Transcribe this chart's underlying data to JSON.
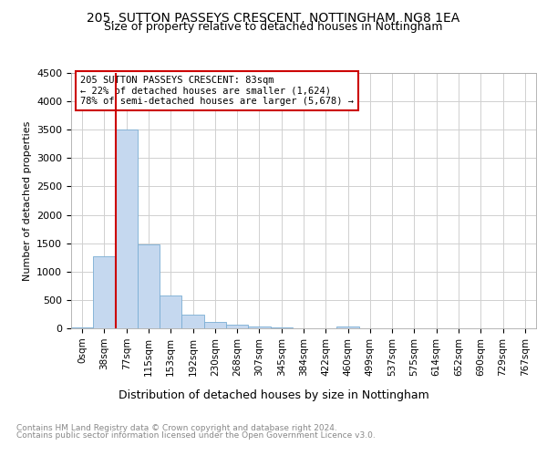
{
  "title1": "205, SUTTON PASSEYS CRESCENT, NOTTINGHAM, NG8 1EA",
  "title2": "Size of property relative to detached houses in Nottingham",
  "xlabel": "Distribution of detached houses by size in Nottingham",
  "ylabel": "Number of detached properties",
  "footer1": "Contains HM Land Registry data © Crown copyright and database right 2024.",
  "footer2": "Contains public sector information licensed under the Open Government Licence v3.0.",
  "annotation_line1": "205 SUTTON PASSEYS CRESCENT: 83sqm",
  "annotation_line2": "← 22% of detached houses are smaller (1,624)",
  "annotation_line3": "78% of semi-detached houses are larger (5,678) →",
  "property_size": 83,
  "bar_color": "#c5d8ef",
  "bar_edge_color": "#7aadd4",
  "vline_color": "#cc0000",
  "annotation_box_color": "#cc0000",
  "categories": [
    "0sqm",
    "38sqm",
    "77sqm",
    "115sqm",
    "153sqm",
    "192sqm",
    "230sqm",
    "268sqm",
    "307sqm",
    "345sqm",
    "384sqm",
    "422sqm",
    "460sqm",
    "499sqm",
    "537sqm",
    "575sqm",
    "614sqm",
    "652sqm",
    "690sqm",
    "729sqm",
    "767sqm"
  ],
  "values": [
    10,
    1270,
    3500,
    1480,
    580,
    240,
    120,
    70,
    30,
    15,
    8,
    4,
    35,
    2,
    1,
    1,
    0,
    0,
    0,
    0,
    0
  ],
  "ylim": [
    0,
    4500
  ],
  "yticks": [
    0,
    500,
    1000,
    1500,
    2000,
    2500,
    3000,
    3500,
    4000,
    4500
  ],
  "background_color": "#ffffff",
  "grid_color": "#d0d0d0",
  "title_fontsize": 10,
  "subtitle_fontsize": 9
}
